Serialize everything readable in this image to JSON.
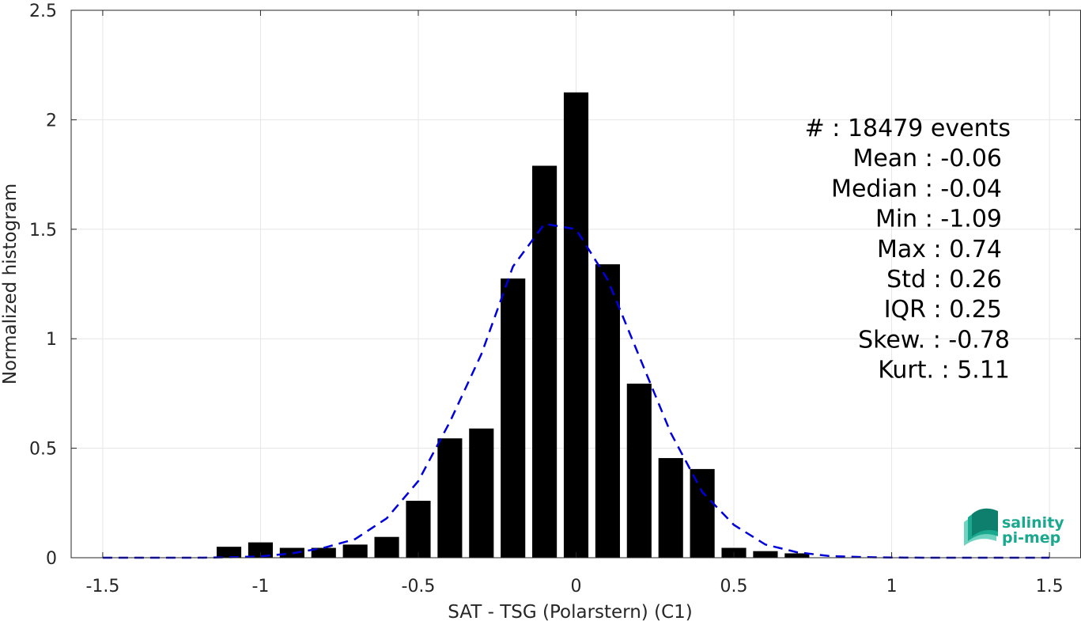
{
  "chart_data": {
    "type": "bar",
    "xlabel": "SAT - TSG (Polarstern) (C1)",
    "ylabel": "Normalized histogram",
    "xlim": [
      -1.6,
      1.6
    ],
    "ylim": [
      0,
      2.5
    ],
    "xticks": [
      -1.5,
      -1,
      -0.5,
      0,
      0.5,
      1,
      1.5
    ],
    "xtick_labels": [
      "-1.5",
      "-1",
      "-0.5",
      "0",
      "0.5",
      "1",
      "1.5"
    ],
    "yticks": [
      0,
      0.5,
      1,
      1.5,
      2,
      2.5
    ],
    "ytick_labels": [
      "0",
      "0.5",
      "1",
      "1.5",
      "2",
      "2.5"
    ],
    "grid": true,
    "bar_color": "#000000",
    "bins": {
      "centers": [
        -1.1,
        -1.0,
        -0.9,
        -0.8,
        -0.7,
        -0.6,
        -0.5,
        -0.4,
        -0.3,
        -0.2,
        -0.1,
        0.0,
        0.1,
        0.2,
        0.3,
        0.4,
        0.5,
        0.6,
        0.7
      ],
      "values": [
        0.05,
        0.07,
        0.045,
        0.045,
        0.06,
        0.095,
        0.26,
        0.545,
        0.59,
        1.275,
        1.79,
        2.125,
        1.34,
        0.795,
        0.455,
        0.405,
        0.045,
        0.03,
        0.02
      ]
    },
    "fit_curve": {
      "style": "dashed",
      "color": "#0000dd",
      "x": [
        -1.5,
        -1.4,
        -1.3,
        -1.2,
        -1.1,
        -1.0,
        -0.9,
        -0.8,
        -0.7,
        -0.6,
        -0.5,
        -0.4,
        -0.3,
        -0.2,
        -0.1,
        0.0,
        0.1,
        0.2,
        0.3,
        0.4,
        0.5,
        0.6,
        0.7,
        0.8,
        0.9,
        1.0,
        1.1,
        1.2,
        1.3,
        1.4,
        1.5
      ],
      "y": [
        0,
        0,
        0,
        0,
        0.002,
        0.006,
        0.02,
        0.045,
        0.085,
        0.18,
        0.35,
        0.62,
        0.93,
        1.33,
        1.525,
        1.5,
        1.27,
        0.92,
        0.57,
        0.3,
        0.15,
        0.06,
        0.025,
        0.008,
        0.003,
        0.001,
        0,
        0,
        0,
        0,
        0
      ]
    },
    "annotations": [
      "#  : 18479 events",
      "Mean : -0.06",
      "Median : -0.04",
      "Min : -1.09",
      "Max : 0.74",
      "Std : 0.26",
      "IQR : 0.25",
      "Skew. : -0.78",
      "Kurt. : 5.11"
    ]
  },
  "logo": {
    "line1": "salinity",
    "line2": "pi-mep",
    "colors": [
      "#1aa88f",
      "#0e7f6d",
      "#6fd3c0"
    ]
  }
}
